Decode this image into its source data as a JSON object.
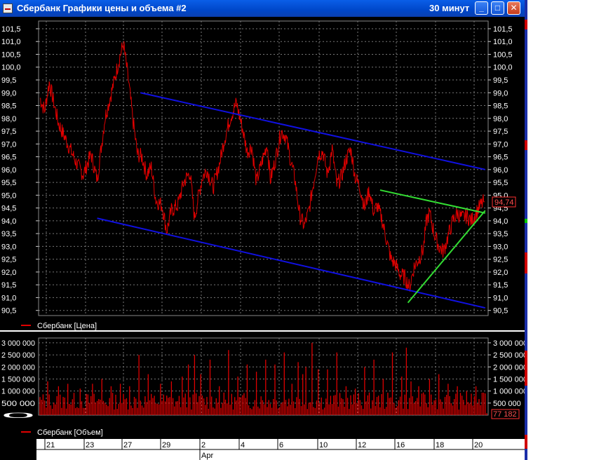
{
  "window": {
    "title": "Сбербанк Графики цены и объема #2",
    "interval": "30 минут",
    "controls": {
      "minimize": "_",
      "maximize": "□",
      "close": "✕"
    }
  },
  "colors": {
    "background": "#000000",
    "price": "#e00000",
    "volume": "#dd0000",
    "channel": "#1010e0",
    "wedge": "#33dd33",
    "grid": "#777777",
    "text": "#ffffff"
  },
  "chart_data": [
    {
      "type": "line",
      "title": "",
      "series": [
        {
          "name": "Сбербанк [Цена]"
        }
      ],
      "legend": "bottom-left",
      "grid": true,
      "ylim": [
        90.3,
        101.8
      ],
      "y_ticks": [
        "90,5",
        "91,0",
        "91,5",
        "92,0",
        "92,5",
        "93,0",
        "93,5",
        "94,0",
        "94,5",
        "95,0",
        "95,5",
        "96,0",
        "96,5",
        "97,0",
        "97,5",
        "98,0",
        "98,5",
        "99,0",
        "99,5",
        "100,0",
        "100,5",
        "101,0",
        "101,5"
      ],
      "last_value": "94,74",
      "anchors": [
        [
          0,
          98.8
        ],
        [
          3,
          98.3
        ],
        [
          6,
          99.4
        ],
        [
          12,
          97.8
        ],
        [
          18,
          97.0
        ],
        [
          24,
          96.2
        ],
        [
          28,
          95.8
        ],
        [
          33,
          96.6
        ],
        [
          37,
          95.6
        ],
        [
          42,
          98.0
        ],
        [
          47,
          99.2
        ],
        [
          52,
          100.5
        ],
        [
          54,
          100.9
        ],
        [
          57,
          99.6
        ],
        [
          60,
          98.0
        ],
        [
          63,
          96.6
        ],
        [
          66,
          96.5
        ],
        [
          69,
          95.8
        ],
        [
          72,
          96.1
        ],
        [
          75,
          94.8
        ],
        [
          79,
          94.6
        ],
        [
          82,
          93.6
        ],
        [
          85,
          94.4
        ],
        [
          89,
          94.6
        ],
        [
          93,
          95.5
        ],
        [
          97,
          95.9
        ],
        [
          100,
          94.1
        ],
        [
          102,
          94.8
        ],
        [
          105,
          95.7
        ],
        [
          108,
          96.0
        ],
        [
          112,
          95.3
        ],
        [
          116,
          96.2
        ],
        [
          119,
          97.1
        ],
        [
          123,
          98.0
        ],
        [
          127,
          98.6
        ],
        [
          131,
          97.6
        ],
        [
          134,
          96.7
        ],
        [
          137,
          96.9
        ],
        [
          140,
          95.5
        ],
        [
          144,
          96.4
        ],
        [
          147,
          97.0
        ],
        [
          149,
          95.6
        ],
        [
          152,
          96.3
        ],
        [
          156,
          97.5
        ],
        [
          159,
          97.3
        ],
        [
          162,
          96.4
        ],
        [
          165,
          95.6
        ],
        [
          168,
          94.2
        ],
        [
          171,
          93.8
        ],
        [
          174,
          94.4
        ],
        [
          177,
          95.5
        ],
        [
          180,
          96.6
        ],
        [
          183,
          96.7
        ],
        [
          186,
          95.8
        ],
        [
          189,
          96.8
        ],
        [
          192,
          95.4
        ],
        [
          195,
          95.7
        ],
        [
          198,
          96.4
        ],
        [
          201,
          96.8
        ],
        [
          204,
          95.7
        ],
        [
          207,
          95.3
        ],
        [
          210,
          94.5
        ],
        [
          213,
          95.2
        ],
        [
          216,
          94.3
        ],
        [
          218,
          94.6
        ],
        [
          221,
          94.1
        ],
        [
          224,
          93.3
        ],
        [
          227,
          92.5
        ],
        [
          230,
          92.3
        ],
        [
          233,
          91.9
        ],
        [
          236,
          91.8
        ],
        [
          239,
          91.4
        ],
        [
          242,
          92.2
        ],
        [
          245,
          92.5
        ],
        [
          248,
          92.9
        ],
        [
          250,
          94.0
        ],
        [
          252,
          94.3
        ],
        [
          255,
          93.5
        ],
        [
          258,
          93.0
        ],
        [
          261,
          92.8
        ],
        [
          264,
          93.4
        ],
        [
          267,
          94.0
        ],
        [
          270,
          94.3
        ],
        [
          273,
          94.1
        ],
        [
          276,
          94.2
        ],
        [
          279,
          94.0
        ],
        [
          282,
          94.3
        ],
        [
          285,
          94.6
        ],
        [
          287,
          94.74
        ]
      ],
      "price_noise": 0.32,
      "trendlines": [
        {
          "kind": "channel",
          "from": [
            65,
            99.0
          ],
          "to": [
            288,
            96.0
          ]
        },
        {
          "kind": "channel",
          "from": [
            37,
            94.1
          ],
          "to": [
            288,
            90.6
          ]
        },
        {
          "kind": "wedge",
          "from": [
            220,
            95.2
          ],
          "to": [
            288,
            94.3
          ]
        },
        {
          "kind": "wedge",
          "from": [
            238,
            90.8
          ],
          "to": [
            288,
            94.4
          ]
        }
      ]
    },
    {
      "type": "bar",
      "title": "",
      "series": [
        {
          "name": "Сбербанк [Объем]"
        }
      ],
      "legend": "bottom-left",
      "grid": true,
      "ylim": [
        0,
        3200000
      ],
      "y_ticks_left": [
        "0",
        "500 000",
        "1 000 000",
        "1 500 000",
        "2 000 000",
        "2 500 000",
        "3 000 000"
      ],
      "y_ticks_right": [
        "500 000",
        "1 000 000",
        "1 500 000",
        "2 000 000",
        "2 500 000",
        "3 000 000"
      ],
      "last_value": "77 182",
      "bar_count": 290,
      "typical_volume": 650000,
      "spikes": [
        [
          5,
          1400000
        ],
        [
          12,
          1200000
        ],
        [
          18,
          1300000
        ],
        [
          26,
          1100000
        ],
        [
          34,
          1300000
        ],
        [
          40,
          1500000
        ],
        [
          46,
          1200000
        ],
        [
          52,
          1300000
        ],
        [
          58,
          1200000
        ],
        [
          64,
          2500000
        ],
        [
          70,
          1700000
        ],
        [
          78,
          1300000
        ],
        [
          85,
          1400000
        ],
        [
          92,
          1600000
        ],
        [
          96,
          2100000
        ],
        [
          100,
          2500000
        ],
        [
          104,
          1700000
        ],
        [
          110,
          2300000
        ],
        [
          116,
          1200000
        ],
        [
          122,
          2700000
        ],
        [
          128,
          1600000
        ],
        [
          134,
          2100000
        ],
        [
          140,
          1800000
        ],
        [
          146,
          2300000
        ],
        [
          152,
          2100000
        ],
        [
          158,
          2600000
        ],
        [
          163,
          1300000
        ],
        [
          167,
          2200000
        ],
        [
          170,
          1700000
        ],
        [
          172,
          2000000
        ],
        [
          176,
          3000000
        ],
        [
          180,
          1900000
        ],
        [
          186,
          1900000
        ],
        [
          192,
          2600000
        ],
        [
          198,
          1200000
        ],
        [
          204,
          1100000
        ],
        [
          210,
          2000000
        ],
        [
          216,
          2300000
        ],
        [
          222,
          1500000
        ],
        [
          228,
          2600000
        ],
        [
          234,
          1600000
        ],
        [
          237,
          2800000
        ],
        [
          240,
          1400000
        ],
        [
          245,
          1200000
        ],
        [
          252,
          1500000
        ],
        [
          258,
          1700000
        ],
        [
          264,
          1300000
        ],
        [
          270,
          1200000
        ],
        [
          276,
          1000000
        ],
        [
          282,
          1200000
        ],
        [
          288,
          900000
        ]
      ]
    }
  ],
  "date_axis": {
    "labels": [
      "21",
      "23",
      "27",
      "29",
      "2",
      "4",
      "6",
      "10",
      "12",
      "16",
      "18",
      "20"
    ],
    "month": "Apr",
    "month_at": "2"
  }
}
